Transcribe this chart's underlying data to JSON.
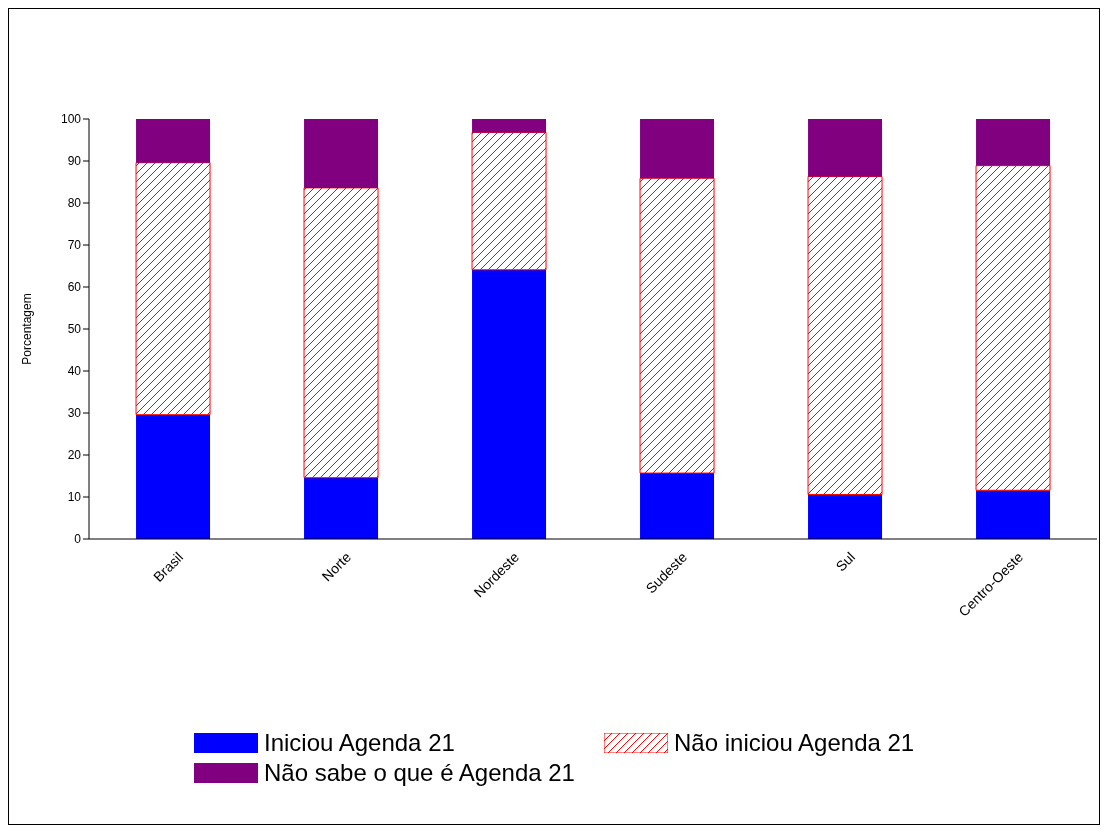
{
  "chart_data": {
    "type": "bar",
    "stacked": true,
    "ylabel": "Porcentagem",
    "categories": [
      "Brasil",
      "Norte",
      "Nordeste",
      "Sudeste",
      "Sul",
      "Centro-Oeste"
    ],
    "series": [
      {
        "name": "Iniciou Agenda 21",
        "color": "#0000ff",
        "values": [
          29.6,
          14.6,
          64.1,
          15.7,
          10.6,
          11.6
        ]
      },
      {
        "name": "Não iniciou Agenda 21",
        "color": "#ff0000",
        "values": [
          60.0,
          69.0,
          32.7,
          70.2,
          75.7,
          77.3
        ]
      },
      {
        "name": "Não sabe o que é Agenda 21",
        "color": "#800080",
        "values": [
          10.4,
          16.4,
          3.2,
          14.1,
          13.7,
          11.1
        ]
      }
    ],
    "ylim": [
      0,
      100
    ],
    "yticks": [
      0,
      10,
      20,
      30,
      40,
      50,
      60,
      70,
      80,
      90,
      100
    ],
    "grid": false,
    "legend": "bottom"
  }
}
